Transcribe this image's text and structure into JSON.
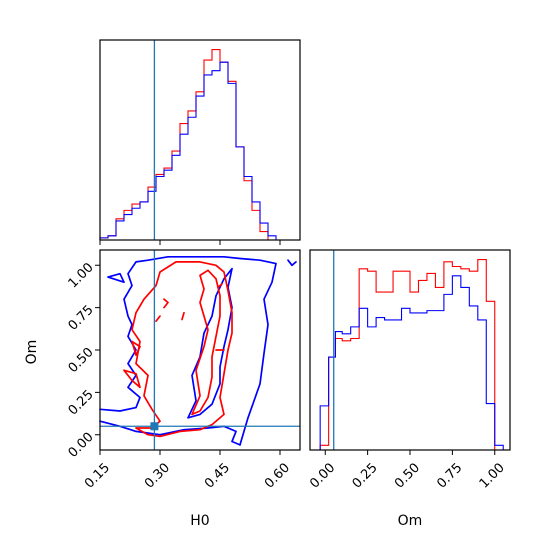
{
  "chart_data": [
    {
      "type": "histogram",
      "panel": "H0 marginal (top-left)",
      "xlim": [
        0.15,
        0.65
      ],
      "bin_edges": [
        0.15,
        0.17,
        0.19,
        0.21,
        0.23,
        0.25,
        0.27,
        0.29,
        0.31,
        0.33,
        0.35,
        0.37,
        0.39,
        0.41,
        0.43,
        0.45,
        0.47,
        0.49,
        0.51,
        0.53,
        0.55,
        0.57,
        0.59
      ],
      "series": [
        {
          "color": "#ff0000",
          "values": [
            1,
            2,
            10,
            14,
            17,
            18,
            25,
            31,
            34,
            42,
            55,
            61,
            70,
            85,
            90,
            84,
            75,
            44,
            28,
            14,
            4,
            0
          ]
        },
        {
          "color": "#0000ff",
          "values": [
            1,
            2,
            9,
            12,
            15,
            18,
            23,
            30,
            33,
            40,
            50,
            58,
            68,
            78,
            80,
            84,
            74,
            44,
            30,
            18,
            8,
            2
          ]
        }
      ],
      "truth": 0.286,
      "xticklabels": []
    },
    {
      "type": "contour",
      "panel": "H0 vs Om joint (bottom-left)",
      "xlabel": "H0",
      "ylabel": "Om",
      "xlim": [
        0.15,
        0.65
      ],
      "ylim": [
        -0.09,
        1.09
      ],
      "xticks": [
        0.15,
        0.3,
        0.45,
        0.6
      ],
      "xticklabels": [
        "0.15",
        "0.30",
        "0.45",
        "0.60"
      ],
      "yticks": [
        0.0,
        0.25,
        0.5,
        0.75,
        1.0
      ],
      "yticklabels": [
        "0.00",
        "0.25",
        "0.50",
        "0.75",
        "1.00"
      ],
      "truth": {
        "H0": 0.286,
        "Om": 0.05
      },
      "series": [
        {
          "color": "#0000ff",
          "level": "outer",
          "polylines": [
            [
              [
                0.15,
                0.08
              ],
              [
                0.2,
                0.05
              ],
              [
                0.24,
                0.02
              ],
              [
                0.3,
                0.0
              ],
              [
                0.36,
                0.03
              ],
              [
                0.42,
                0.04
              ],
              [
                0.46,
                0.05
              ],
              [
                0.49,
                0.02
              ],
              [
                0.48,
                -0.04
              ],
              [
                0.5,
                -0.06
              ]
            ],
            [
              [
                0.5,
                -0.06
              ],
              [
                0.52,
                0.1
              ],
              [
                0.55,
                0.3
              ],
              [
                0.56,
                0.48
              ],
              [
                0.57,
                0.65
              ],
              [
                0.56,
                0.8
              ],
              [
                0.58,
                0.9
              ],
              [
                0.59,
                1.01
              ],
              [
                0.55,
                1.03
              ],
              [
                0.5,
                1.04
              ],
              [
                0.46,
                1.05
              ],
              [
                0.4,
                1.05
              ],
              [
                0.32,
                1.05
              ],
              [
                0.27,
                1.03
              ],
              [
                0.24,
                1.02
              ],
              [
                0.22,
                0.95
              ],
              [
                0.23,
                0.88
              ],
              [
                0.21,
                0.8
              ],
              [
                0.22,
                0.7
              ],
              [
                0.23,
                0.65
              ],
              [
                0.22,
                0.58
              ],
              [
                0.24,
                0.5
              ],
              [
                0.22,
                0.42
              ],
              [
                0.24,
                0.35
              ],
              [
                0.22,
                0.28
              ],
              [
                0.25,
                0.22
              ],
              [
                0.24,
                0.16
              ],
              [
                0.2,
                0.14
              ],
              [
                0.15,
                0.15
              ]
            ],
            [
              [
                0.17,
                0.93
              ],
              [
                0.2,
                0.95
              ],
              [
                0.21,
                0.9
              ],
              [
                0.17,
                0.93
              ]
            ],
            [
              [
                0.62,
                1.03
              ],
              [
                0.63,
                1.0
              ],
              [
                0.64,
                1.02
              ]
            ],
            [
              [
                0.37,
                0.1
              ],
              [
                0.39,
                0.2
              ],
              [
                0.38,
                0.35
              ],
              [
                0.4,
                0.46
              ],
              [
                0.41,
                0.6
              ],
              [
                0.43,
                0.7
              ],
              [
                0.44,
                0.82
              ],
              [
                0.46,
                0.92
              ],
              [
                0.48,
                0.98
              ],
              [
                0.47,
                0.87
              ],
              [
                0.48,
                0.75
              ],
              [
                0.47,
                0.62
              ],
              [
                0.46,
                0.52
              ],
              [
                0.45,
                0.4
              ],
              [
                0.45,
                0.3
              ],
              [
                0.43,
                0.18
              ],
              [
                0.4,
                0.12
              ],
              [
                0.37,
                0.1
              ]
            ]
          ]
        },
        {
          "color": "#ff0000",
          "level": "inner",
          "polylines": [
            [
              [
                0.24,
                0.04
              ],
              [
                0.28,
                0.04
              ],
              [
                0.3,
                0.08
              ],
              [
                0.28,
                0.15
              ],
              [
                0.26,
                0.23
              ],
              [
                0.27,
                0.35
              ],
              [
                0.24,
                0.42
              ],
              [
                0.25,
                0.55
              ],
              [
                0.23,
                0.62
              ],
              [
                0.24,
                0.72
              ],
              [
                0.26,
                0.8
              ],
              [
                0.29,
                0.88
              ],
              [
                0.3,
                0.96
              ],
              [
                0.34,
                1.02
              ],
              [
                0.4,
                1.02
              ],
              [
                0.44,
                1.0
              ],
              [
                0.46,
                0.96
              ],
              [
                0.47,
                0.85
              ],
              [
                0.48,
                0.72
              ],
              [
                0.48,
                0.6
              ],
              [
                0.47,
                0.5
              ],
              [
                0.46,
                0.36
              ],
              [
                0.45,
                0.22
              ],
              [
                0.46,
                0.12
              ],
              [
                0.43,
                0.06
              ],
              [
                0.4,
                0.03
              ],
              [
                0.35,
                0.02
              ],
              [
                0.3,
                -0.01
              ],
              [
                0.27,
                0.0
              ],
              [
                0.24,
                0.04
              ]
            ],
            [
              [
                0.38,
                0.12
              ],
              [
                0.4,
                0.23
              ],
              [
                0.39,
                0.38
              ],
              [
                0.41,
                0.52
              ],
              [
                0.42,
                0.62
              ],
              [
                0.4,
                0.78
              ],
              [
                0.41,
                0.86
              ],
              [
                0.4,
                0.94
              ],
              [
                0.42,
                0.97
              ],
              [
                0.44,
                0.92
              ],
              [
                0.45,
                0.82
              ],
              [
                0.45,
                0.7
              ],
              [
                0.44,
                0.58
              ],
              [
                0.43,
                0.46
              ],
              [
                0.43,
                0.34
              ],
              [
                0.42,
                0.22
              ],
              [
                0.4,
                0.14
              ],
              [
                0.38,
                0.12
              ]
            ],
            [
              [
                0.21,
                0.38
              ],
              [
                0.23,
                0.32
              ],
              [
                0.25,
                0.28
              ],
              [
                0.24,
                0.36
              ],
              [
                0.21,
                0.38
              ]
            ],
            [
              [
                0.23,
                0.55
              ],
              [
                0.25,
                0.52
              ],
              [
                0.24,
                0.47
              ],
              [
                0.23,
                0.55
              ]
            ],
            [
              [
                0.31,
                0.75
              ],
              [
                0.32,
                0.78
              ],
              [
                0.31,
                0.8
              ]
            ],
            [
              [
                0.29,
                0.67
              ],
              [
                0.3,
                0.7
              ]
            ],
            [
              [
                0.355,
                0.68
              ],
              [
                0.36,
                0.72
              ]
            ],
            [
              [
                0.44,
                0.5
              ],
              [
                0.46,
                0.5
              ]
            ],
            [
              [
                0.445,
                0.87
              ],
              [
                0.455,
                0.89
              ]
            ]
          ]
        }
      ]
    },
    {
      "type": "histogram",
      "panel": "Om marginal (bottom-right)",
      "xlabel": "Om",
      "xlim": [
        -0.09,
        1.09
      ],
      "xticks": [
        0.0,
        0.25,
        0.5,
        0.75,
        1.0
      ],
      "xticklabels": [
        "0.00",
        "0.25",
        "0.50",
        "0.75",
        "1.00"
      ],
      "bin_edges": [
        -0.09,
        -0.03,
        0.02,
        0.06,
        0.1,
        0.15,
        0.2,
        0.25,
        0.3,
        0.35,
        0.4,
        0.45,
        0.5,
        0.55,
        0.6,
        0.65,
        0.7,
        0.75,
        0.8,
        0.85,
        0.9,
        0.95,
        1.0,
        1.05,
        1.09
      ],
      "series": [
        {
          "color": "#ff0000",
          "values": [
            0,
            2,
            40,
            48,
            47,
            48,
            78,
            77,
            68,
            68,
            77,
            77,
            68,
            73,
            76,
            70,
            81,
            79,
            78,
            77,
            82,
            64,
            0,
            0
          ]
        },
        {
          "color": "#0000ff",
          "values": [
            0,
            19,
            40,
            51,
            50,
            53,
            61,
            53,
            57,
            56,
            56,
            61,
            59,
            59,
            60,
            60,
            67,
            75,
            70,
            62,
            56,
            20,
            2,
            0
          ]
        }
      ],
      "truth": 0.05
    }
  ],
  "labels": {
    "xlabel_left": "H0",
    "xlabel_right": "Om",
    "ylabel_joint": "Om"
  }
}
